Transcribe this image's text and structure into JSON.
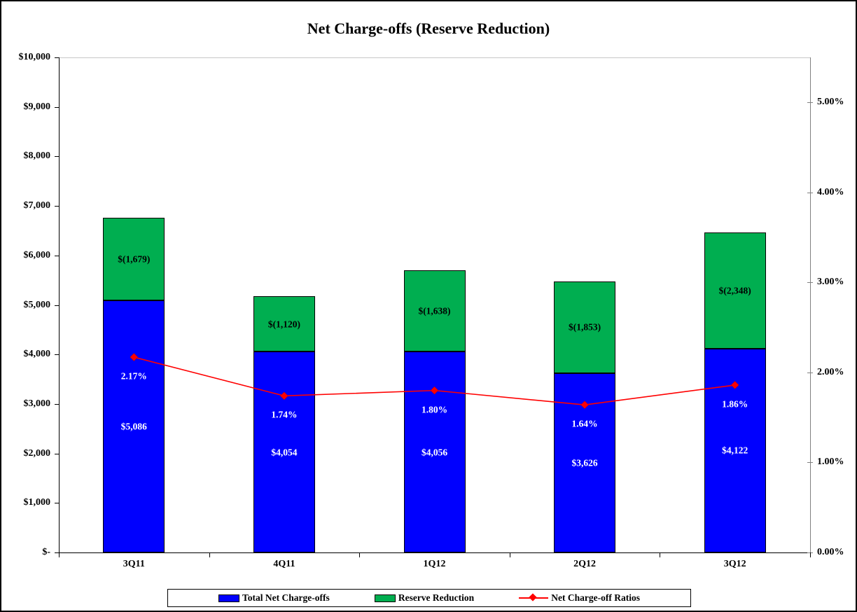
{
  "title": "Net Charge-offs (Reserve Reduction)",
  "colors": {
    "bar_primary": "#0000FE",
    "bar_secondary": "#00AE50",
    "line": "#FF0000",
    "gridline": "#C8C8C8",
    "axis": "#000000",
    "right_axis": "#808080",
    "label_on_blue": "#FFFFFF",
    "label_on_green": "#000000"
  },
  "chart_data": {
    "type": "bar",
    "subtype": "stacked-bars-with-line-overlay",
    "title": "Net Charge-offs (Reserve Reduction)",
    "categories": [
      "3Q11",
      "4Q11",
      "1Q12",
      "2Q12",
      "3Q12"
    ],
    "series": [
      {
        "name": "Total Net Charge-offs",
        "type": "bar",
        "axis": "left",
        "values": [
          5086,
          4054,
          4056,
          3626,
          4122
        ],
        "labels": [
          "$5,086",
          "$4,054",
          "$4,056",
          "$3,626",
          "$4,122"
        ]
      },
      {
        "name": "Reserve Reduction",
        "type": "bar",
        "axis": "left",
        "values": [
          1679,
          1120,
          1638,
          1853,
          2348
        ],
        "labels": [
          "$(1,679)",
          "$(1,120)",
          "$(1,638)",
          "$(1,853)",
          "$(2,348)"
        ]
      },
      {
        "name": "Net Charge-off Ratios",
        "type": "line",
        "axis": "right",
        "values": [
          2.17,
          1.74,
          1.8,
          1.64,
          1.86
        ],
        "labels": [
          "2.17%",
          "1.74%",
          "1.80%",
          "1.64%",
          "1.86%"
        ]
      }
    ],
    "left_axis": {
      "min": 0,
      "max": 10000,
      "step": 1000,
      "tick_labels": [
        "$-",
        "$1,000",
        "$2,000",
        "$3,000",
        "$4,000",
        "$5,000",
        "$6,000",
        "$7,000",
        "$8,000",
        "$9,000",
        "$10,000"
      ]
    },
    "right_axis": {
      "min": 0,
      "max": 5.5,
      "step": 1,
      "tick_labels": [
        "0.00%",
        "1.00%",
        "2.00%",
        "3.00%",
        "4.00%",
        "5.00%"
      ]
    },
    "gridlines": "top-only",
    "legend_position": "bottom"
  },
  "legend": {
    "items": [
      {
        "label": "Total Net Charge-offs",
        "swatch": "blue-rect"
      },
      {
        "label": "Reserve Reduction",
        "swatch": "green-rect"
      },
      {
        "label": "Net Charge-off Ratios",
        "swatch": "red-line-diamond"
      }
    ]
  }
}
